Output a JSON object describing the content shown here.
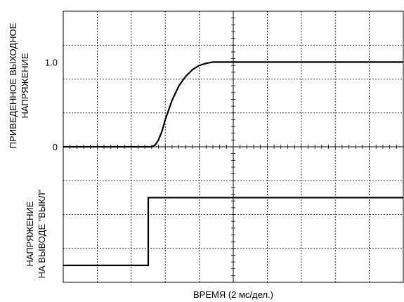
{
  "chart_data": {
    "type": "line",
    "xlabel": "ВРЕМЯ (2 мс/дел.)",
    "x_divisions": 10,
    "y_divisions": 8,
    "grid": true,
    "upper": {
      "ylabel_line1": "ПРИВЕДЕННОЕ ВЫХОДНОЕ",
      "ylabel_line2": "НАПРЯЖЕНИЕ",
      "tick_labels": [
        "1.0",
        "0"
      ],
      "ylim": [
        0,
        1.0
      ],
      "x": [
        0,
        1.0,
        2.6,
        2.62,
        2.7,
        2.8,
        2.9,
        3.0,
        3.2,
        3.4,
        3.6,
        3.8,
        4.0,
        4.2,
        4.4,
        4.6,
        4.8,
        5.0,
        6.0,
        8.0,
        10.0
      ],
      "y": [
        0,
        0,
        0,
        0.005,
        0.02,
        0.08,
        0.18,
        0.32,
        0.55,
        0.72,
        0.83,
        0.91,
        0.96,
        0.985,
        1.0,
        1.0,
        1.0,
        1.0,
        1.0,
        1.0,
        1.0
      ]
    },
    "lower": {
      "ylabel_line1": "НАПРЯЖЕНИЕ",
      "ylabel_line2": "НА ВЫВОДЕ \"ВЫКЛ\"",
      "x": [
        0,
        2.5,
        2.5,
        10.0
      ],
      "y": [
        0,
        0,
        1,
        1
      ]
    }
  }
}
